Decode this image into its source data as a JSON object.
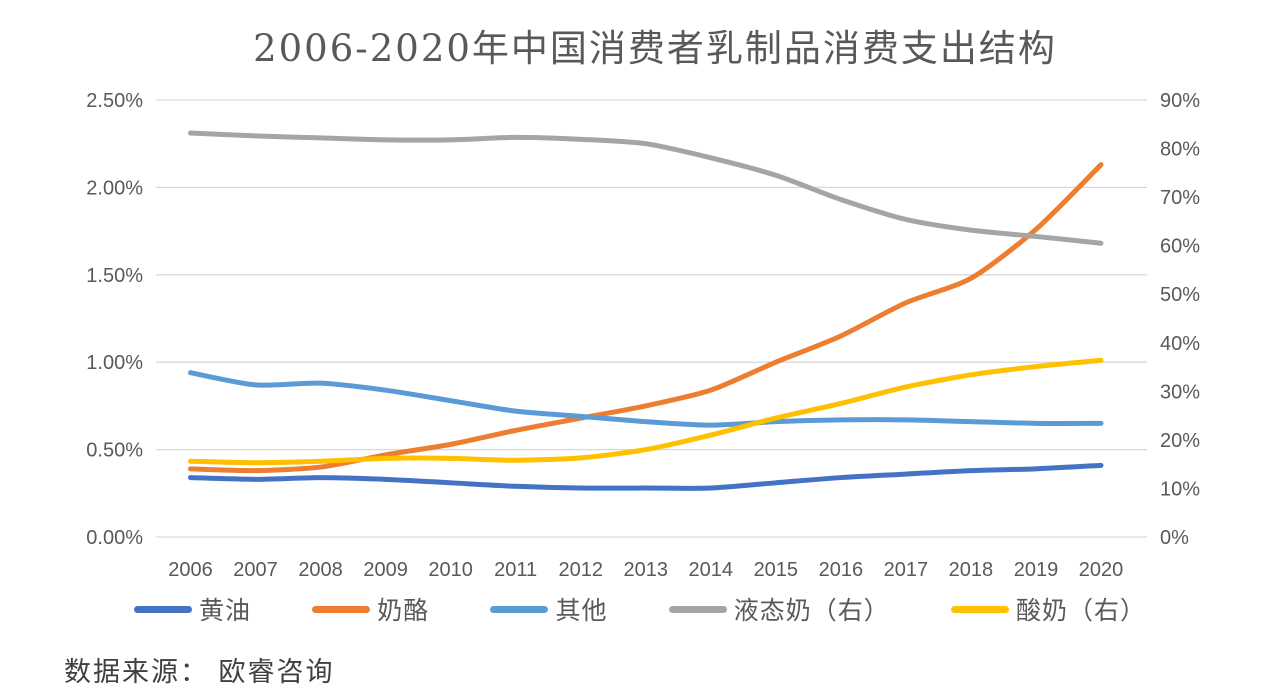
{
  "title": "2006-2020年中国消费者乳制品消费支出结构",
  "source_note": "数据来源： 欧睿咨询",
  "chart_data": {
    "type": "line",
    "title": "2006-2020年中国消费者乳制品消费支出结构",
    "x": [
      "2006",
      "2007",
      "2008",
      "2009",
      "2010",
      "2011",
      "2012",
      "2013",
      "2014",
      "2015",
      "2016",
      "2017",
      "2018",
      "2019",
      "2020"
    ],
    "left_axis": {
      "ticks_top_to_bottom": [
        "2.50%",
        "2.00%",
        "1.50%",
        "1.00%",
        "0.50%",
        "0.00%"
      ],
      "min": 0,
      "max": 2.5,
      "unit": "%"
    },
    "right_axis": {
      "ticks_top_to_bottom": [
        "90%",
        "80%",
        "70%",
        "60%",
        "50%",
        "40%",
        "30%",
        "20%",
        "10%",
        "0%"
      ],
      "min": 0,
      "max": 90,
      "unit": "%"
    },
    "grid": true,
    "grid_color": "#d9d9d9",
    "legend_position": "bottom",
    "series": [
      {
        "id": "butter",
        "name": "黄油",
        "axis": "left",
        "color": "#4472C4",
        "values": [
          0.34,
          0.33,
          0.34,
          0.33,
          0.31,
          0.29,
          0.28,
          0.28,
          0.28,
          0.31,
          0.34,
          0.36,
          0.38,
          0.39,
          0.41
        ]
      },
      {
        "id": "cheese",
        "name": "奶酪",
        "axis": "left",
        "color": "#ED7D31",
        "values": [
          0.39,
          0.38,
          0.4,
          0.47,
          0.53,
          0.61,
          0.68,
          0.75,
          0.84,
          1.0,
          1.15,
          1.34,
          1.48,
          1.76,
          2.13
        ]
      },
      {
        "id": "other",
        "name": "其他",
        "axis": "left",
        "color": "#5B9BD5",
        "values": [
          0.94,
          0.87,
          0.88,
          0.84,
          0.78,
          0.72,
          0.69,
          0.66,
          0.64,
          0.66,
          0.67,
          0.67,
          0.66,
          0.65,
          0.65
        ]
      },
      {
        "id": "liquid-milk",
        "name": "液态奶（右）",
        "axis": "right",
        "color": "#A5A5A5",
        "values": [
          83.2,
          82.6,
          82.2,
          81.8,
          81.8,
          82.3,
          81.9,
          81.0,
          78.1,
          74.5,
          69.5,
          65.4,
          63.2,
          61.9,
          60.5
        ]
      },
      {
        "id": "yogurt",
        "name": "酸奶（右）",
        "axis": "right",
        "color": "#FFC000",
        "values": [
          15.6,
          15.3,
          15.6,
          16.2,
          16.2,
          15.8,
          16.3,
          18.0,
          21.0,
          24.5,
          27.5,
          30.9,
          33.4,
          35.1,
          36.4
        ]
      }
    ]
  }
}
